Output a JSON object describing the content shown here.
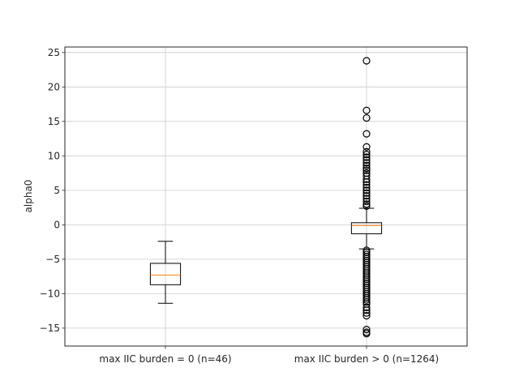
{
  "chart_data": {
    "type": "box",
    "title": "",
    "xlabel": "",
    "ylabel": "alpha0",
    "ylim": [
      -17.6,
      25.8
    ],
    "yticks": [
      -15,
      -10,
      -5,
      0,
      5,
      10,
      15,
      20,
      25
    ],
    "ytick_labels": [
      "−15",
      "−10",
      "−5",
      "0",
      "5",
      "10",
      "15",
      "20",
      "25"
    ],
    "grid": true,
    "categories": [
      "max IIC burden = 0 (n=46)",
      "max IIC burden > 0 (n=1264)"
    ],
    "boxes": [
      {
        "label": "max IIC burden = 0 (n=46)",
        "whisker_low": -11.4,
        "q1": -8.7,
        "median": -7.3,
        "q3": -5.6,
        "whisker_high": -2.4,
        "outliers": []
      },
      {
        "label": "max IIC burden > 0 (n=1264)",
        "whisker_low": -3.5,
        "q1": -1.3,
        "median": -0.1,
        "q3": 0.3,
        "whisker_high": 2.4,
        "outliers": [
          23.8,
          16.6,
          15.5,
          13.2,
          11.3,
          10.6,
          10.2,
          9.8,
          9.4,
          9.0,
          8.6,
          8.2,
          7.9,
          7.5,
          7.1,
          6.6,
          6.2,
          5.8,
          5.4,
          5.0,
          4.6,
          4.2,
          3.8,
          3.4,
          3.0,
          2.7,
          -3.7,
          -4.0,
          -4.3,
          -4.6,
          -4.9,
          -5.2,
          -5.5,
          -5.8,
          -6.1,
          -6.4,
          -6.7,
          -7.0,
          -7.3,
          -7.6,
          -7.9,
          -8.2,
          -8.5,
          -8.8,
          -9.1,
          -9.4,
          -9.7,
          -10.0,
          -10.3,
          -10.6,
          -10.9,
          -11.2,
          -11.5,
          -12.0,
          -12.4,
          -12.8,
          -13.2,
          -15.2,
          -15.6,
          -15.8
        ]
      }
    ],
    "colors": {
      "median": "#ff7f0e",
      "box": "#000000",
      "grid": "#cccccc",
      "axis": "#262626"
    }
  }
}
